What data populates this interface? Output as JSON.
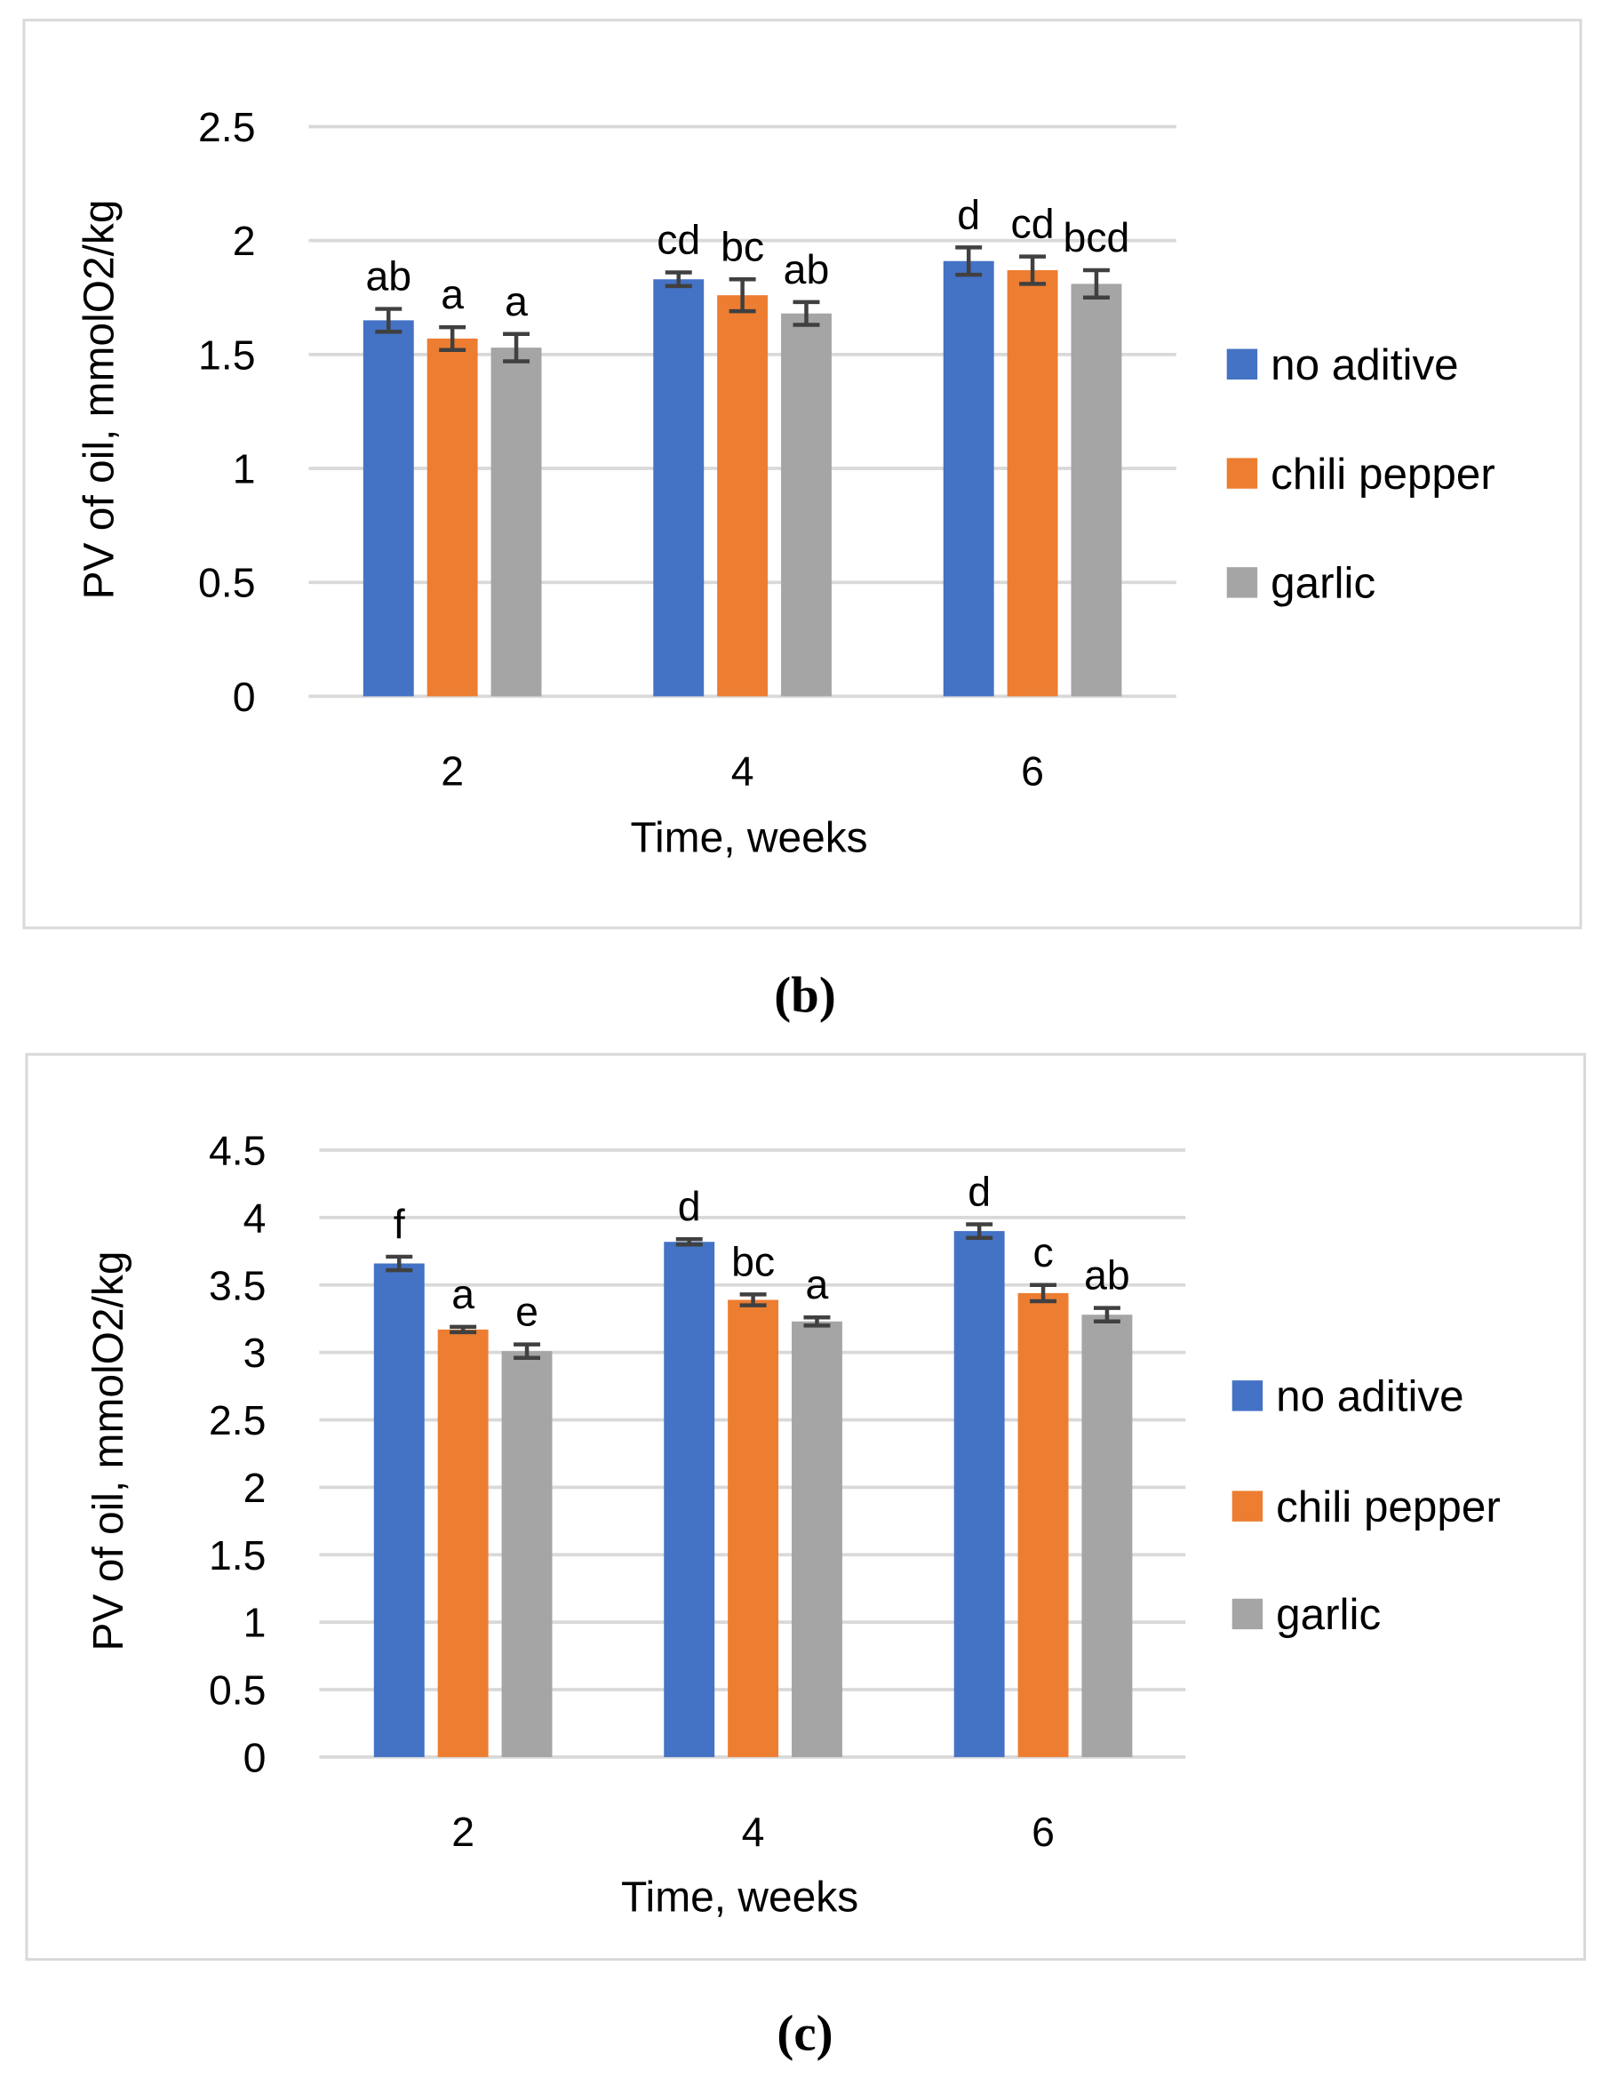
{
  "chart_data": [
    {
      "type": "bar",
      "panel_label": "b",
      "title": "",
      "xlabel": "Time, weeks",
      "ylabel": "PV of oil, mmolO2/kg",
      "categories": [
        "2",
        "4",
        "6"
      ],
      "ylim": [
        0,
        2.5
      ],
      "yticks": [
        0,
        0.5,
        1,
        1.5,
        2,
        2.5
      ],
      "ytick_labels": [
        "0",
        "0.5",
        "1",
        "1.5",
        "2",
        "2.5"
      ],
      "grid": true,
      "legend_position": "right",
      "series": [
        {
          "name": "no aditive",
          "color": "#4472C4",
          "values": [
            1.65,
            1.83,
            1.91
          ],
          "errors": [
            0.05,
            0.03,
            0.06
          ],
          "letters": [
            "ab",
            "cd",
            "d"
          ]
        },
        {
          "name": "chili pepper",
          "color": "#ED7D31",
          "values": [
            1.57,
            1.76,
            1.87
          ],
          "errors": [
            0.05,
            0.07,
            0.06
          ],
          "letters": [
            "a",
            "bc",
            "cd"
          ]
        },
        {
          "name": "garlic",
          "color": "#A5A5A5",
          "values": [
            1.53,
            1.68,
            1.81
          ],
          "errors": [
            0.06,
            0.05,
            0.06
          ],
          "letters": [
            "a",
            "ab",
            "bcd"
          ]
        }
      ]
    },
    {
      "type": "bar",
      "panel_label": "c",
      "title": "",
      "xlabel": "Time, weeks",
      "ylabel": "PV of oil, mmolO2/kg",
      "categories": [
        "2",
        "4",
        "6"
      ],
      "ylim": [
        0,
        4.5
      ],
      "yticks": [
        0,
        0.5,
        1,
        1.5,
        2,
        2.5,
        3,
        3.5,
        4,
        4.5
      ],
      "ytick_labels": [
        "0",
        "0.5",
        "1",
        "1.5",
        "2",
        "2.5",
        "3",
        "3.5",
        "4",
        "4.5"
      ],
      "grid": true,
      "legend_position": "right",
      "series": [
        {
          "name": "no aditive",
          "color": "#4472C4",
          "values": [
            3.66,
            3.82,
            3.9
          ],
          "errors": [
            0.05,
            0.02,
            0.05
          ],
          "letters": [
            "f",
            "d",
            "d"
          ]
        },
        {
          "name": "chili pepper",
          "color": "#ED7D31",
          "values": [
            3.17,
            3.39,
            3.44
          ],
          "errors": [
            0.02,
            0.04,
            0.06
          ],
          "letters": [
            "a",
            "bc",
            "c"
          ]
        },
        {
          "name": "garlic",
          "color": "#A5A5A5",
          "values": [
            3.01,
            3.23,
            3.28
          ],
          "errors": [
            0.05,
            0.03,
            0.05
          ],
          "letters": [
            "e",
            "a",
            "ab"
          ]
        }
      ]
    }
  ],
  "captions": [
    "(b)",
    "(c)"
  ]
}
